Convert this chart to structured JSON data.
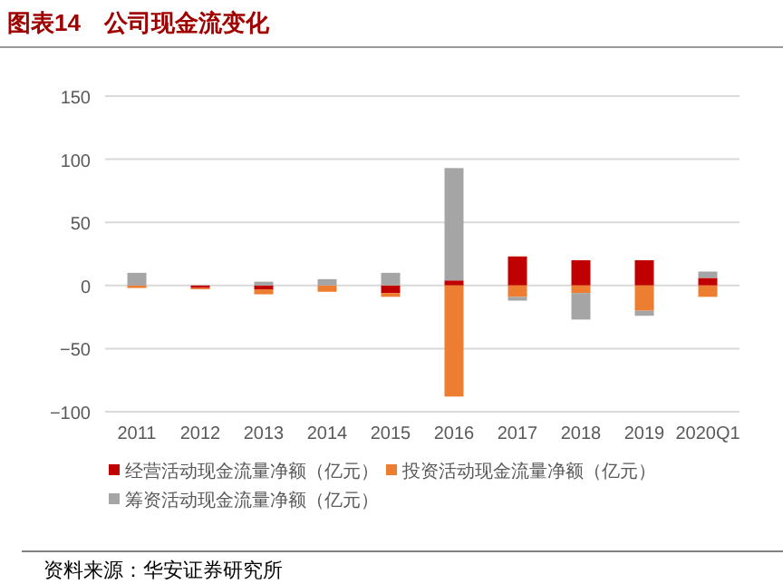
{
  "chart_data": {
    "type": "bar",
    "title": "图表14　公司现金流变化",
    "stacked": true,
    "categories": [
      "2011",
      "2012",
      "2013",
      "2014",
      "2015",
      "2016",
      "2017",
      "2018",
      "2019",
      "2020Q1"
    ],
    "series": [
      {
        "name": "经营活动现金流量净额（亿元）",
        "color": "#c00000",
        "values": [
          0,
          -2,
          -3,
          0,
          -6,
          4,
          23,
          20,
          20,
          6
        ]
      },
      {
        "name": "投资活动现金流量净额（亿元）",
        "color": "#ed7d31",
        "values": [
          -2,
          -1,
          -4,
          -5,
          -3,
          -88,
          -9,
          -6,
          -20,
          -9
        ]
      },
      {
        "name": "筹资活动现金流量净额（亿元）",
        "color": "#a5a5a5",
        "values": [
          10,
          0,
          3,
          5,
          10,
          89,
          -3,
          -21,
          -4,
          5
        ]
      }
    ],
    "ylim": [
      -100,
      150
    ],
    "yticks": [
      {
        "value": -100,
        "label": "−100"
      },
      {
        "value": -50,
        "label": "−50"
      },
      0,
      50,
      100,
      150
    ],
    "grid": "y",
    "legend": "bottom",
    "annotations": [
      "资料来源：华安证券研究所"
    ]
  }
}
